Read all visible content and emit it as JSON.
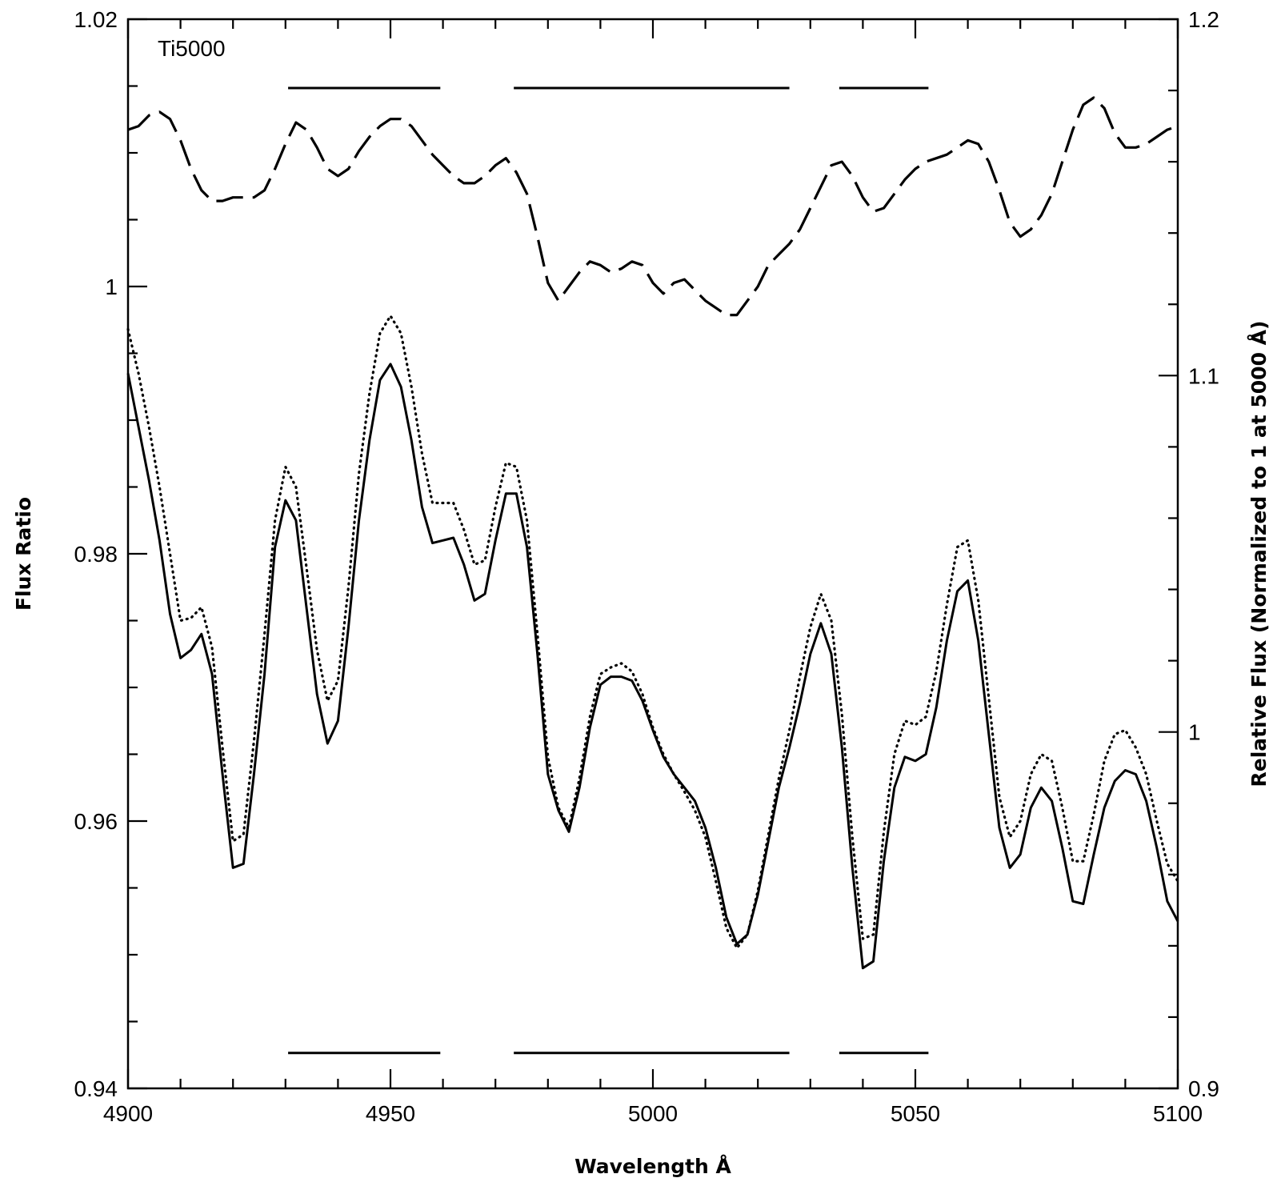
{
  "chart_data": {
    "type": "line",
    "panel_label": "Ti5000",
    "xlabel": "Wavelength Å",
    "ylabel": "Flux Ratio",
    "ylabel_right": "Relative Flux (Normalized to 1 at 5000 Å)",
    "xlim": [
      4900,
      5100
    ],
    "ylim": [
      0.94,
      1.02
    ],
    "ylim_right": [
      0.9,
      1.2
    ],
    "x_ticks": [
      4900,
      4950,
      5000,
      5050,
      5100
    ],
    "y_ticks": [
      0.94,
      0.96,
      0.98,
      1.0
    ],
    "y_tick_labels": [
      "0.94",
      "0.96",
      "0.98",
      "1",
      "1.02"
    ],
    "y_ticks_all": [
      0.94,
      0.96,
      0.98,
      1.0,
      1.02
    ],
    "y_right_ticks": [
      0.9,
      1.0,
      1.1,
      1.2
    ],
    "y_right_tick_labels": [
      "0.9",
      "1",
      "1.1",
      "1.2"
    ],
    "bands": [
      [
        4930.5,
        4959.5
      ],
      [
        4973.5,
        5026
      ],
      [
        5035.5,
        5052.5
      ]
    ],
    "band_y_upper": 1.01485,
    "band_y_lower": 0.94265,
    "grid": false,
    "legend": "none",
    "series": [
      {
        "style": "solid",
        "axis": "left",
        "x": [
          4900,
          4902,
          4904,
          4906,
          4908,
          4910,
          4912,
          4914,
          4916,
          4918,
          4920,
          4922,
          4924,
          4926,
          4928,
          4930,
          4932,
          4934,
          4936,
          4938,
          4940,
          4942,
          4944,
          4946,
          4948,
          4950,
          4952,
          4954,
          4956,
          4958,
          4960,
          4962,
          4964,
          4966,
          4968,
          4970,
          4972,
          4974,
          4976,
          4978,
          4980,
          4982,
          4984,
          4986,
          4988,
          4990,
          4992,
          4994,
          4996,
          4998,
          5000,
          5002,
          5004,
          5006,
          5008,
          5010,
          5012,
          5014,
          5016,
          5018,
          5020,
          5022,
          5024,
          5026,
          5028,
          5030,
          5032,
          5034,
          5036,
          5038,
          5040,
          5042,
          5044,
          5046,
          5048,
          5050,
          5052,
          5054,
          5056,
          5058,
          5060,
          5062,
          5064,
          5066,
          5068,
          5070,
          5072,
          5074,
          5076,
          5078,
          5080,
          5082,
          5084,
          5086,
          5088,
          5090,
          5092,
          5094,
          5096,
          5098,
          5100
        ],
        "y": [
          0.9935,
          0.9895,
          0.9855,
          0.981,
          0.9755,
          0.9722,
          0.9728,
          0.974,
          0.971,
          0.9635,
          0.9565,
          0.9568,
          0.9635,
          0.971,
          0.9805,
          0.984,
          0.9825,
          0.976,
          0.9695,
          0.9658,
          0.9675,
          0.9745,
          0.9825,
          0.9885,
          0.993,
          0.9942,
          0.9925,
          0.9885,
          0.9835,
          0.9808,
          0.981,
          0.9812,
          0.9792,
          0.9765,
          0.977,
          0.981,
          0.9845,
          0.9845,
          0.9805,
          0.9725,
          0.9635,
          0.9608,
          0.9592,
          0.9625,
          0.967,
          0.9702,
          0.9708,
          0.9708,
          0.9705,
          0.969,
          0.9668,
          0.9648,
          0.9635,
          0.9625,
          0.9615,
          0.9595,
          0.9565,
          0.9528,
          0.9508,
          0.9515,
          0.9545,
          0.9585,
          0.9625,
          0.9655,
          0.9688,
          0.9725,
          0.9748,
          0.9725,
          0.9655,
          0.9565,
          0.949,
          0.9495,
          0.957,
          0.9625,
          0.9648,
          0.9645,
          0.965,
          0.9685,
          0.9735,
          0.9772,
          0.978,
          0.9735,
          0.9665,
          0.9595,
          0.9565,
          0.9575,
          0.961,
          0.9625,
          0.9615,
          0.958,
          0.954,
          0.9538,
          0.9575,
          0.961,
          0.963,
          0.9638,
          0.9635,
          0.9615,
          0.958,
          0.954,
          0.9525
        ]
      },
      {
        "style": "dotted",
        "axis": "left",
        "x": [
          4900,
          4902,
          4904,
          4906,
          4908,
          4910,
          4912,
          4914,
          4916,
          4918,
          4920,
          4922,
          4924,
          4926,
          4928,
          4930,
          4932,
          4934,
          4936,
          4938,
          4940,
          4942,
          4944,
          4946,
          4948,
          4950,
          4952,
          4954,
          4956,
          4958,
          4960,
          4962,
          4964,
          4966,
          4968,
          4970,
          4972,
          4974,
          4976,
          4978,
          4980,
          4982,
          4984,
          4986,
          4988,
          4990,
          4992,
          4994,
          4996,
          4998,
          5000,
          5002,
          5004,
          5006,
          5008,
          5010,
          5012,
          5014,
          5016,
          5018,
          5020,
          5022,
          5024,
          5026,
          5028,
          5030,
          5032,
          5034,
          5036,
          5038,
          5040,
          5042,
          5044,
          5046,
          5048,
          5050,
          5052,
          5054,
          5056,
          5058,
          5060,
          5062,
          5064,
          5066,
          5068,
          5070,
          5072,
          5074,
          5076,
          5078,
          5080,
          5082,
          5084,
          5086,
          5088,
          5090,
          5092,
          5094,
          5096,
          5098,
          5100
        ],
        "y": [
          0.9968,
          0.9935,
          0.9895,
          0.985,
          0.98,
          0.975,
          0.9752,
          0.976,
          0.973,
          0.9655,
          0.9585,
          0.959,
          0.966,
          0.974,
          0.9825,
          0.9865,
          0.985,
          0.979,
          0.9728,
          0.969,
          0.9705,
          0.9775,
          0.986,
          0.992,
          0.9965,
          0.9978,
          0.9965,
          0.9925,
          0.9875,
          0.9838,
          0.9838,
          0.9838,
          0.9818,
          0.9792,
          0.9795,
          0.9835,
          0.9868,
          0.9865,
          0.9825,
          0.974,
          0.9648,
          0.961,
          0.9595,
          0.9632,
          0.9678,
          0.971,
          0.9715,
          0.9718,
          0.9712,
          0.9695,
          0.967,
          0.965,
          0.9635,
          0.9622,
          0.9608,
          0.9588,
          0.9555,
          0.952,
          0.9505,
          0.9515,
          0.9548,
          0.959,
          0.9632,
          0.9668,
          0.9708,
          0.9745,
          0.977,
          0.975,
          0.968,
          0.9588,
          0.9512,
          0.9515,
          0.9592,
          0.965,
          0.9675,
          0.9672,
          0.9678,
          0.9712,
          0.9762,
          0.9805,
          0.981,
          0.9765,
          0.9692,
          0.9618,
          0.9588,
          0.96,
          0.9635,
          0.965,
          0.9645,
          0.961,
          0.957,
          0.957,
          0.9605,
          0.9645,
          0.9665,
          0.9668,
          0.9655,
          0.9635,
          0.96,
          0.9568,
          0.9555
        ]
      },
      {
        "style": "dashed",
        "axis": "right",
        "x": [
          4900,
          4902,
          4904,
          4906,
          4908,
          4910,
          4912,
          4914,
          4916,
          4918,
          4920,
          4922,
          4924,
          4926,
          4928,
          4930,
          4932,
          4934,
          4936,
          4938,
          4940,
          4942,
          4944,
          4946,
          4948,
          4950,
          4952,
          4954,
          4956,
          4958,
          4960,
          4962,
          4964,
          4966,
          4968,
          4970,
          4972,
          4974,
          4976,
          4978,
          4980,
          4982,
          4984,
          4986,
          4988,
          4990,
          4992,
          4994,
          4996,
          4998,
          5000,
          5002,
          5004,
          5006,
          5008,
          5010,
          5012,
          5014,
          5016,
          5018,
          5020,
          5022,
          5024,
          5026,
          5028,
          5030,
          5032,
          5034,
          5036,
          5038,
          5040,
          5042,
          5044,
          5046,
          5048,
          5050,
          5052,
          5054,
          5056,
          5058,
          5060,
          5062,
          5064,
          5066,
          5068,
          5070,
          5072,
          5074,
          5076,
          5078,
          5080,
          5082,
          5084,
          5086,
          5088,
          5090,
          5092,
          5094,
          5096,
          5098,
          5100
        ],
        "y": [
          1.169,
          1.17,
          1.173,
          1.174,
          1.172,
          1.166,
          1.158,
          1.152,
          1.149,
          1.149,
          1.15,
          1.15,
          1.15,
          1.152,
          1.158,
          1.165,
          1.171,
          1.169,
          1.164,
          1.158,
          1.156,
          1.158,
          1.163,
          1.167,
          1.17,
          1.172,
          1.172,
          1.17,
          1.166,
          1.162,
          1.159,
          1.156,
          1.154,
          1.154,
          1.156,
          1.159,
          1.161,
          1.157,
          1.151,
          1.139,
          1.126,
          1.121,
          1.125,
          1.129,
          1.132,
          1.131,
          1.129,
          1.13,
          1.132,
          1.131,
          1.126,
          1.123,
          1.126,
          1.127,
          1.124,
          1.121,
          1.119,
          1.117,
          1.117,
          1.121,
          1.125,
          1.131,
          1.134,
          1.137,
          1.141,
          1.147,
          1.153,
          1.159,
          1.16,
          1.156,
          1.15,
          1.146,
          1.147,
          1.151,
          1.155,
          1.158,
          1.16,
          1.161,
          1.162,
          1.164,
          1.166,
          1.165,
          1.16,
          1.152,
          1.143,
          1.139,
          1.141,
          1.145,
          1.151,
          1.16,
          1.169,
          1.176,
          1.178,
          1.175,
          1.168,
          1.164,
          1.164,
          1.165,
          1.167,
          1.169,
          1.17
        ]
      }
    ]
  }
}
